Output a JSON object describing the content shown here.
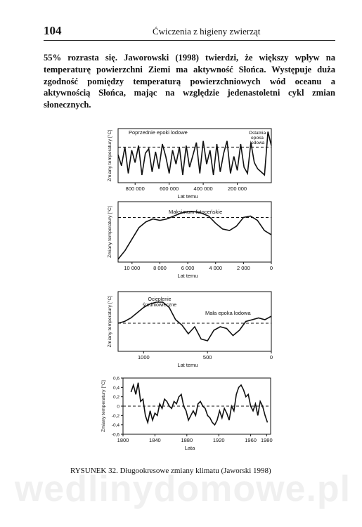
{
  "header": {
    "page_number": "104",
    "running_title": "Ćwiczenia z higieny zwierząt"
  },
  "body_text": "55% rozrasta się. Jaworowski (1998) twierdzi, że większy wpływ na temperaturę powierzchni Ziemi ma aktywność Słońca. Występuje duża zgodność pomiędzy temperaturą powierzchniowych wód oceanu a aktywnością Słońca, mając na względzie jedenastoletni cykl zmian słonecznych.",
  "caption": "RYSUNEK 32. Długookresowe zmiany klimatu (Jaworski 1998)",
  "watermark": "wedlinydomowe.pl",
  "chart_data": [
    {
      "type": "line",
      "ylabel": "Zmiany temperatury [°C]",
      "xlabel": "Lat temu",
      "x_ticks": [
        "800 000",
        "600 000",
        "400 000",
        "200 000"
      ],
      "annotations": [
        "Poprzednie epoki lodowe",
        "Ostatnia epoka lodowa"
      ],
      "series": [
        {
          "x": [
            900000,
            880000,
            860000,
            840000,
            820000,
            800000,
            780000,
            760000,
            740000,
            720000,
            700000,
            680000,
            660000,
            640000,
            620000,
            600000,
            580000,
            560000,
            540000,
            520000,
            500000,
            480000,
            460000,
            440000,
            420000,
            400000,
            380000,
            360000,
            340000,
            320000,
            300000,
            280000,
            260000,
            240000,
            220000,
            200000,
            180000,
            160000,
            140000,
            120000,
            100000,
            80000,
            60000,
            40000,
            20000,
            0
          ],
          "y": [
            0.3,
            -0.4,
            0.8,
            -0.9,
            0.6,
            -0.2,
            0.9,
            -1.0,
            0.4,
            0.7,
            -0.8,
            0.5,
            -0.6,
            1.0,
            0.2,
            -0.9,
            0.6,
            -0.3,
            0.8,
            -1.0,
            0.9,
            -0.5,
            0.3,
            1.1,
            -0.9,
            1.2,
            -0.3,
            0.6,
            -1.0,
            1.0,
            -0.8,
            0.4,
            1.2,
            -0.9,
            0.2,
            -0.7,
            1.0,
            -0.5,
            -0.9,
            1.1,
            -0.2,
            -0.6,
            -0.8,
            -1.0,
            1.8,
            0.9
          ]
        }
      ]
    },
    {
      "type": "line",
      "ylabel": "Zmiany temperatury [°C]",
      "xlabel": "Lat temu",
      "x_ticks": [
        "10 000",
        "8 000",
        "6 000",
        "4 000",
        "2 000",
        "0"
      ],
      "annotations": [
        "Maksimum fotoceńskie"
      ],
      "series": [
        {
          "x": [
            11000,
            10500,
            10000,
            9500,
            9000,
            8500,
            8000,
            7500,
            7000,
            6500,
            6000,
            5500,
            5000,
            4500,
            4000,
            3500,
            3000,
            2500,
            2000,
            1500,
            1000,
            500,
            0
          ],
          "y": [
            -2.0,
            -1.4,
            -0.6,
            0.2,
            0.6,
            0.8,
            0.7,
            0.8,
            1.0,
            1.2,
            1.3,
            1.3,
            1.2,
            1.0,
            0.5,
            0.1,
            0.0,
            0.3,
            0.9,
            1.0,
            0.7,
            0.0,
            -0.3
          ]
        }
      ]
    },
    {
      "type": "line",
      "ylabel": "Zmiany temperatury [°C]",
      "xlabel": "Lat temu",
      "x_ticks": [
        "1000",
        "500",
        "0"
      ],
      "annotations": [
        "Ocieplenie średniowieczne",
        "Mała epoka lodowa"
      ],
      "series": [
        {
          "x": [
            1200,
            1150,
            1100,
            1050,
            1000,
            950,
            900,
            850,
            800,
            750,
            700,
            650,
            600,
            550,
            500,
            450,
            400,
            350,
            300,
            250,
            200,
            150,
            100,
            50,
            0
          ],
          "y": [
            0.0,
            0.1,
            0.3,
            0.6,
            0.9,
            1.1,
            1.2,
            1.2,
            0.9,
            0.2,
            -0.1,
            -0.6,
            -0.2,
            -0.9,
            -1.0,
            -0.4,
            -0.2,
            -0.3,
            -0.7,
            -0.4,
            0.1,
            0.2,
            0.3,
            0.2,
            0.4
          ]
        }
      ]
    },
    {
      "type": "line",
      "ylabel": "Zmiany temperatury [°C]",
      "xlabel": "Lata",
      "ylim": [
        -0.6,
        0.6
      ],
      "y_ticks": [
        "0,6",
        "0,4",
        "0,2",
        "0",
        "-0,2",
        "-0,4",
        "-0,6"
      ],
      "x_ticks": [
        "1800",
        "1840",
        "1880",
        "1920",
        "1960",
        "1980"
      ],
      "series": [
        {
          "x": [
            1810,
            1813,
            1816,
            1819,
            1822,
            1825,
            1828,
            1831,
            1834,
            1837,
            1840,
            1843,
            1846,
            1849,
            1852,
            1855,
            1858,
            1861,
            1864,
            1867,
            1870,
            1873,
            1876,
            1879,
            1882,
            1885,
            1888,
            1891,
            1894,
            1897,
            1900,
            1903,
            1906,
            1909,
            1912,
            1915,
            1918,
            1921,
            1924,
            1927,
            1930,
            1933,
            1936,
            1939,
            1942,
            1945,
            1948,
            1951,
            1954,
            1957,
            1960,
            1963,
            1966,
            1969,
            1972,
            1975,
            1978,
            1981
          ],
          "y": [
            0.3,
            0.45,
            0.25,
            0.5,
            0.1,
            0.15,
            -0.2,
            -0.35,
            -0.1,
            -0.3,
            -0.15,
            -0.2,
            0.05,
            -0.05,
            0.15,
            0.1,
            0.0,
            -0.05,
            0.1,
            0.05,
            0.2,
            0.25,
            0.0,
            -0.1,
            -0.3,
            -0.2,
            -0.1,
            -0.2,
            0.05,
            0.1,
            0.0,
            -0.05,
            -0.2,
            -0.25,
            -0.35,
            -0.4,
            -0.3,
            -0.1,
            -0.25,
            -0.05,
            -0.15,
            -0.3,
            0.0,
            -0.1,
            0.25,
            0.4,
            0.45,
            0.35,
            0.2,
            0.25,
            0.0,
            -0.1,
            0.05,
            -0.2,
            0.1,
            0.0,
            -0.2,
            -0.35
          ]
        }
      ]
    }
  ]
}
